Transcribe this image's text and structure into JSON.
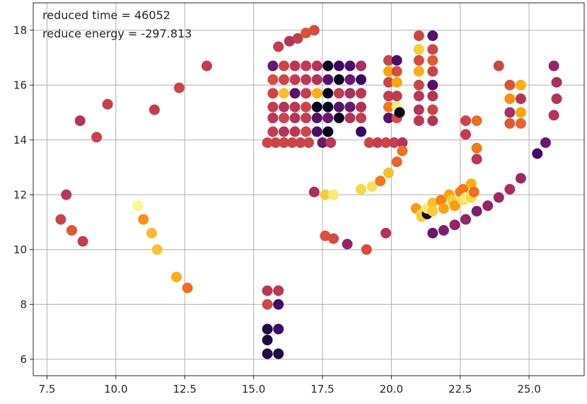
{
  "chart_data": {
    "type": "scatter",
    "title": "",
    "xlabel": "",
    "ylabel": "",
    "xlim": [
      7.0,
      27.0
    ],
    "ylim": [
      5.4,
      19.0
    ],
    "x_ticks": [
      7.5,
      10.0,
      12.5,
      15.0,
      17.5,
      20.0,
      22.5,
      25.0
    ],
    "x_tick_labels": [
      "7.5",
      "10.0",
      "12.5",
      "15.0",
      "17.5",
      "20.0",
      "22.5",
      "25.0"
    ],
    "y_ticks": [
      6,
      8,
      10,
      12,
      14,
      16,
      18
    ],
    "y_tick_labels": [
      "6",
      "8",
      "10",
      "12",
      "14",
      "16",
      "18"
    ],
    "grid": true,
    "legend": "none",
    "colormap": "inferno",
    "annotations": [
      {
        "text": "reduced time = 46052",
        "position": "top-left"
      },
      {
        "text": "reduce energy = -297.813",
        "position": "top-left"
      }
    ],
    "points": [
      [
        8.0,
        11.1,
        0.55
      ],
      [
        8.2,
        12.0,
        0.5
      ],
      [
        8.4,
        10.7,
        0.62
      ],
      [
        8.7,
        14.7,
        0.48
      ],
      [
        8.8,
        10.3,
        0.52
      ],
      [
        9.3,
        14.1,
        0.54
      ],
      [
        9.7,
        15.3,
        0.53
      ],
      [
        10.8,
        11.6,
        0.98
      ],
      [
        11.0,
        11.1,
        0.75
      ],
      [
        11.3,
        10.6,
        0.85
      ],
      [
        11.4,
        15.1,
        0.52
      ],
      [
        11.5,
        10.0,
        0.86
      ],
      [
        12.2,
        9.0,
        0.82
      ],
      [
        12.3,
        15.9,
        0.55
      ],
      [
        12.6,
        8.6,
        0.68
      ],
      [
        13.3,
        16.7,
        0.52
      ],
      [
        15.5,
        8.5,
        0.5
      ],
      [
        15.5,
        8.0,
        0.56
      ],
      [
        15.5,
        7.1,
        0.12
      ],
      [
        15.5,
        6.7,
        0.12
      ],
      [
        15.5,
        6.2,
        0.12
      ],
      [
        15.9,
        8.5,
        0.5
      ],
      [
        15.9,
        8.0,
        0.2
      ],
      [
        15.9,
        7.1,
        0.2
      ],
      [
        15.9,
        6.2,
        0.12
      ],
      [
        15.9,
        17.4,
        0.52
      ],
      [
        16.3,
        17.6,
        0.48
      ],
      [
        16.6,
        17.7,
        0.52
      ],
      [
        16.9,
        17.9,
        0.6
      ],
      [
        17.2,
        18.0,
        0.58
      ],
      [
        15.7,
        16.7,
        0.3
      ],
      [
        16.1,
        16.7,
        0.55
      ],
      [
        16.5,
        16.7,
        0.5
      ],
      [
        16.9,
        16.7,
        0.52
      ],
      [
        17.3,
        16.7,
        0.48
      ],
      [
        17.7,
        16.7,
        0.05
      ],
      [
        18.1,
        16.7,
        0.18
      ],
      [
        18.5,
        16.7,
        0.22
      ],
      [
        18.9,
        16.7,
        0.45
      ],
      [
        15.7,
        16.2,
        0.58
      ],
      [
        16.1,
        16.2,
        0.55
      ],
      [
        16.5,
        16.2,
        0.52
      ],
      [
        16.9,
        16.2,
        0.5
      ],
      [
        17.3,
        16.2,
        0.48
      ],
      [
        17.7,
        16.2,
        0.25
      ],
      [
        18.1,
        16.2,
        0.05
      ],
      [
        18.5,
        16.2,
        0.3
      ],
      [
        18.9,
        16.2,
        0.18
      ],
      [
        15.7,
        15.7,
        0.55
      ],
      [
        16.1,
        15.7,
        0.85
      ],
      [
        16.5,
        15.7,
        0.25
      ],
      [
        16.9,
        15.7,
        0.52
      ],
      [
        17.3,
        15.7,
        0.82
      ],
      [
        17.7,
        15.7,
        0.05
      ],
      [
        18.1,
        15.7,
        0.52
      ],
      [
        18.5,
        15.7,
        0.45
      ],
      [
        18.9,
        15.7,
        0.5
      ],
      [
        15.7,
        15.2,
        0.52
      ],
      [
        16.1,
        15.2,
        0.48
      ],
      [
        16.5,
        15.2,
        0.5
      ],
      [
        16.9,
        15.2,
        0.55
      ],
      [
        17.3,
        15.2,
        0.05
      ],
      [
        17.7,
        15.2,
        0.05
      ],
      [
        18.1,
        15.2,
        0.25
      ],
      [
        18.5,
        15.2,
        0.3
      ],
      [
        18.9,
        15.2,
        0.48
      ],
      [
        15.7,
        14.8,
        0.5
      ],
      [
        16.1,
        14.8,
        0.55
      ],
      [
        16.5,
        14.8,
        0.48
      ],
      [
        16.9,
        14.8,
        0.52
      ],
      [
        17.3,
        14.8,
        0.25
      ],
      [
        17.7,
        14.8,
        0.3
      ],
      [
        18.1,
        14.8,
        0.05
      ],
      [
        18.5,
        14.8,
        0.48
      ],
      [
        18.9,
        14.8,
        0.52
      ],
      [
        15.7,
        14.3,
        0.52
      ],
      [
        16.1,
        14.3,
        0.48
      ],
      [
        16.5,
        14.3,
        0.5
      ],
      [
        16.9,
        14.3,
        0.55
      ],
      [
        17.3,
        14.3,
        0.22
      ],
      [
        17.7,
        14.3,
        0.05
      ],
      [
        18.9,
        14.3,
        0.18
      ],
      [
        15.5,
        13.9,
        0.55
      ],
      [
        15.8,
        13.9,
        0.55
      ],
      [
        16.1,
        13.9,
        0.55
      ],
      [
        16.4,
        13.9,
        0.55
      ],
      [
        16.7,
        13.9,
        0.55
      ],
      [
        17.0,
        13.9,
        0.55
      ],
      [
        17.5,
        13.9,
        0.3
      ],
      [
        17.8,
        13.9,
        0.5
      ],
      [
        19.2,
        13.9,
        0.55
      ],
      [
        19.5,
        13.9,
        0.52
      ],
      [
        19.8,
        13.9,
        0.55
      ],
      [
        20.1,
        13.9,
        0.52
      ],
      [
        20.4,
        13.9,
        0.48
      ],
      [
        19.9,
        16.9,
        0.55
      ],
      [
        19.9,
        16.5,
        0.8
      ],
      [
        19.9,
        16.1,
        0.55
      ],
      [
        19.9,
        15.6,
        0.52
      ],
      [
        19.9,
        15.2,
        0.7
      ],
      [
        19.9,
        14.8,
        0.25
      ],
      [
        20.2,
        16.9,
        0.22
      ],
      [
        20.2,
        16.5,
        0.58
      ],
      [
        20.2,
        16.1,
        0.8
      ],
      [
        20.2,
        15.6,
        0.52
      ],
      [
        20.2,
        15.2,
        0.95
      ],
      [
        20.2,
        14.8,
        0.58
      ],
      [
        20.3,
        15.0,
        0.05
      ],
      [
        21.0,
        17.8,
        0.55
      ],
      [
        21.0,
        17.3,
        0.88
      ],
      [
        21.0,
        16.9,
        0.58
      ],
      [
        21.0,
        16.5,
        0.82
      ],
      [
        21.0,
        16.0,
        0.55
      ],
      [
        21.0,
        15.6,
        0.5
      ],
      [
        21.0,
        15.1,
        0.48
      ],
      [
        21.0,
        14.7,
        0.5
      ],
      [
        21.5,
        17.8,
        0.25
      ],
      [
        21.5,
        17.3,
        0.55
      ],
      [
        21.5,
        16.9,
        0.62
      ],
      [
        21.5,
        16.5,
        0.55
      ],
      [
        21.5,
        16.0,
        0.25
      ],
      [
        21.5,
        15.6,
        0.48
      ],
      [
        21.5,
        15.1,
        0.55
      ],
      [
        21.5,
        14.7,
        0.48
      ],
      [
        17.2,
        12.1,
        0.45
      ],
      [
        17.6,
        12.0,
        0.88
      ],
      [
        17.9,
        12.0,
        0.95
      ],
      [
        18.9,
        12.2,
        0.9
      ],
      [
        19.3,
        12.3,
        0.92
      ],
      [
        19.6,
        12.5,
        0.7
      ],
      [
        19.9,
        12.8,
        0.85
      ],
      [
        20.2,
        13.2,
        0.65
      ],
      [
        20.4,
        13.6,
        0.68
      ],
      [
        17.6,
        10.5,
        0.6
      ],
      [
        17.9,
        10.4,
        0.58
      ],
      [
        18.4,
        10.2,
        0.4
      ],
      [
        19.1,
        10.0,
        0.58
      ],
      [
        19.8,
        10.6,
        0.48
      ],
      [
        20.9,
        11.5,
        0.78
      ],
      [
        21.1,
        11.3,
        0.92
      ],
      [
        21.1,
        11.2,
        0.88
      ],
      [
        21.3,
        11.3,
        0.05
      ],
      [
        21.3,
        11.5,
        0.95
      ],
      [
        21.5,
        11.7,
        0.85
      ],
      [
        21.5,
        11.4,
        0.88
      ],
      [
        21.8,
        11.8,
        0.72
      ],
      [
        21.9,
        11.5,
        0.8
      ],
      [
        22.1,
        12.0,
        0.8
      ],
      [
        22.2,
        11.8,
        0.88
      ],
      [
        22.3,
        11.6,
        0.78
      ],
      [
        22.5,
        12.1,
        0.72
      ],
      [
        22.6,
        12.2,
        0.7
      ],
      [
        22.6,
        11.8,
        0.92
      ],
      [
        22.7,
        11.9,
        0.95
      ],
      [
        22.9,
        12.4,
        0.82
      ],
      [
        22.9,
        11.9,
        0.9
      ],
      [
        23.0,
        12.1,
        0.68
      ],
      [
        21.5,
        10.6,
        0.3
      ],
      [
        21.9,
        10.7,
        0.35
      ],
      [
        22.3,
        10.9,
        0.4
      ],
      [
        22.7,
        11.1,
        0.4
      ],
      [
        23.1,
        11.4,
        0.35
      ],
      [
        23.5,
        11.6,
        0.4
      ],
      [
        23.9,
        11.9,
        0.42
      ],
      [
        24.3,
        12.2,
        0.45
      ],
      [
        24.7,
        12.6,
        0.42
      ],
      [
        25.3,
        13.5,
        0.2
      ],
      [
        25.6,
        13.9,
        0.3
      ],
      [
        22.7,
        14.7,
        0.55
      ],
      [
        22.7,
        14.2,
        0.52
      ],
      [
        23.1,
        14.7,
        0.68
      ],
      [
        23.1,
        13.7,
        0.7
      ],
      [
        23.1,
        13.3,
        0.5
      ],
      [
        23.9,
        16.7,
        0.55
      ],
      [
        24.3,
        16.0,
        0.6
      ],
      [
        24.3,
        15.5,
        0.75
      ],
      [
        24.3,
        15.0,
        0.45
      ],
      [
        24.3,
        14.6,
        0.62
      ],
      [
        24.7,
        16.0,
        0.82
      ],
      [
        24.7,
        15.5,
        0.48
      ],
      [
        24.7,
        15.0,
        0.8
      ],
      [
        24.7,
        14.6,
        0.65
      ],
      [
        25.9,
        16.7,
        0.4
      ],
      [
        26.0,
        16.1,
        0.45
      ],
      [
        26.0,
        15.5,
        0.48
      ],
      [
        25.9,
        14.9,
        0.48
      ]
    ]
  }
}
